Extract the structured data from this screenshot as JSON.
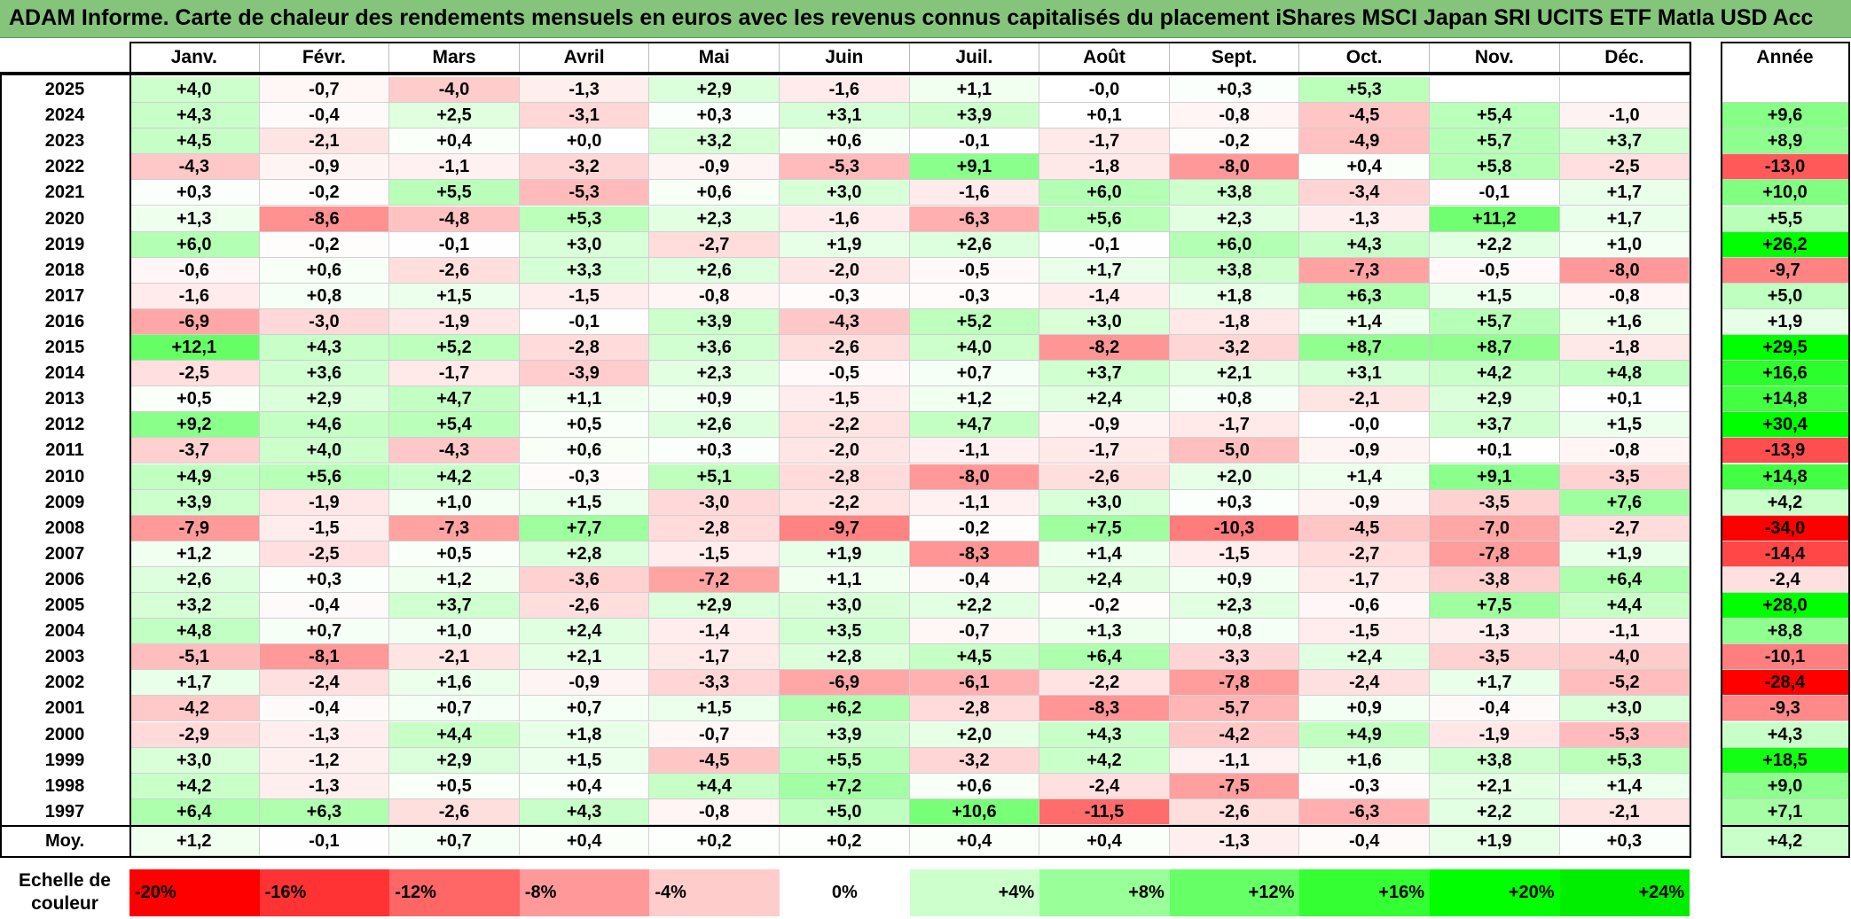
{
  "title": "ADAM Informe. Carte de chaleur des rendements mensuels en euros avec les revenus connus capitalisés du placement iShares MSCI Japan SRI UCITS ETF Matla USD Acc",
  "chart_data": {
    "type": "heatmap",
    "title": "ADAM Informe. Carte de chaleur des rendements mensuels en euros avec les revenus connus capitalisés du placement iShares MSCI Japan SRI UCITS ETF Matla USD Acc",
    "columns": [
      "Janv.",
      "Févr.",
      "Mars",
      "Avril",
      "Mai",
      "Juin",
      "Juil.",
      "Août",
      "Sept.",
      "Oct.",
      "Nov.",
      "Déc."
    ],
    "year_header": "Année",
    "rows": [
      {
        "year": "2025",
        "values": [
          "+4,0",
          "-0,7",
          "-4,0",
          "-1,3",
          "+2,9",
          "-1,6",
          "+1,1",
          "-0,0",
          "+0,3",
          "+5,3",
          "",
          ""
        ],
        "annual": ""
      },
      {
        "year": "2024",
        "values": [
          "+4,3",
          "-0,4",
          "+2,5",
          "-3,1",
          "+0,3",
          "+3,1",
          "+3,9",
          "+0,1",
          "-0,8",
          "-4,5",
          "+5,4",
          "-1,0"
        ],
        "annual": "+9,6"
      },
      {
        "year": "2023",
        "values": [
          "+4,5",
          "-2,1",
          "+0,4",
          "+0,0",
          "+3,2",
          "+0,6",
          "-0,1",
          "-1,7",
          "-0,2",
          "-4,9",
          "+5,7",
          "+3,7"
        ],
        "annual": "+8,9"
      },
      {
        "year": "2022",
        "values": [
          "-4,3",
          "-0,9",
          "-1,1",
          "-3,2",
          "-0,9",
          "-5,3",
          "+9,1",
          "-1,8",
          "-8,0",
          "+0,4",
          "+5,8",
          "-2,5"
        ],
        "annual": "-13,0"
      },
      {
        "year": "2021",
        "values": [
          "+0,3",
          "-0,2",
          "+5,5",
          "-5,3",
          "+0,6",
          "+3,0",
          "-1,6",
          "+6,0",
          "+3,8",
          "-3,4",
          "-0,1",
          "+1,7"
        ],
        "annual": "+10,0"
      },
      {
        "year": "2020",
        "values": [
          "+1,3",
          "-8,6",
          "-4,8",
          "+5,3",
          "+2,3",
          "-1,6",
          "-6,3",
          "+5,6",
          "+2,3",
          "-1,3",
          "+11,2",
          "+1,7"
        ],
        "annual": "+5,5"
      },
      {
        "year": "2019",
        "values": [
          "+6,0",
          "-0,2",
          "-0,1",
          "+3,0",
          "-2,7",
          "+1,9",
          "+2,6",
          "-0,1",
          "+6,0",
          "+4,3",
          "+2,2",
          "+1,0"
        ],
        "annual": "+26,2"
      },
      {
        "year": "2018",
        "values": [
          "-0,6",
          "+0,6",
          "-2,6",
          "+3,3",
          "+2,6",
          "-2,0",
          "-0,5",
          "+1,7",
          "+3,8",
          "-7,3",
          "-0,5",
          "-8,0"
        ],
        "annual": "-9,7"
      },
      {
        "year": "2017",
        "values": [
          "-1,6",
          "+0,8",
          "+1,5",
          "-1,5",
          "-0,8",
          "-0,3",
          "-0,3",
          "-1,4",
          "+1,8",
          "+6,3",
          "+1,5",
          "-0,8"
        ],
        "annual": "+5,0"
      },
      {
        "year": "2016",
        "values": [
          "-6,9",
          "-3,0",
          "-1,9",
          "-0,1",
          "+3,9",
          "-4,3",
          "+5,2",
          "+3,0",
          "-1,8",
          "+1,4",
          "+5,7",
          "+1,6"
        ],
        "annual": "+1,9"
      },
      {
        "year": "2015",
        "values": [
          "+12,1",
          "+4,3",
          "+5,2",
          "-2,8",
          "+3,6",
          "-2,6",
          "+4,0",
          "-8,2",
          "-3,2",
          "+8,7",
          "+8,7",
          "-1,8"
        ],
        "annual": "+29,5"
      },
      {
        "year": "2014",
        "values": [
          "-2,5",
          "+3,6",
          "-1,7",
          "-3,9",
          "+2,3",
          "-0,5",
          "+0,7",
          "+3,7",
          "+2,1",
          "+3,1",
          "+4,2",
          "+4,8"
        ],
        "annual": "+16,6"
      },
      {
        "year": "2013",
        "values": [
          "+0,5",
          "+2,9",
          "+4,7",
          "+1,1",
          "+0,9",
          "-1,5",
          "+1,2",
          "+2,4",
          "+0,8",
          "-2,1",
          "+2,9",
          "+0,1"
        ],
        "annual": "+14,8"
      },
      {
        "year": "2012",
        "values": [
          "+9,2",
          "+4,6",
          "+5,4",
          "+0,5",
          "+2,6",
          "-2,2",
          "+4,7",
          "-0,9",
          "-1,7",
          "-0,0",
          "+3,7",
          "+1,5"
        ],
        "annual": "+30,4"
      },
      {
        "year": "2011",
        "values": [
          "-3,7",
          "+4,0",
          "-4,3",
          "+0,6",
          "+0,3",
          "-2,0",
          "-1,1",
          "-1,7",
          "-5,0",
          "-0,9",
          "+0,1",
          "-0,8"
        ],
        "annual": "-13,9"
      },
      {
        "year": "2010",
        "values": [
          "+4,9",
          "+5,6",
          "+4,2",
          "-0,3",
          "+5,1",
          "-2,8",
          "-8,0",
          "-2,6",
          "+2,0",
          "+1,4",
          "+9,1",
          "-3,5"
        ],
        "annual": "+14,8"
      },
      {
        "year": "2009",
        "values": [
          "+3,9",
          "-1,9",
          "+1,0",
          "+1,5",
          "-3,0",
          "-2,2",
          "-1,1",
          "+3,0",
          "+0,3",
          "-0,9",
          "-3,5",
          "+7,6"
        ],
        "annual": "+4,2"
      },
      {
        "year": "2008",
        "values": [
          "-7,9",
          "-1,5",
          "-7,3",
          "+7,7",
          "-2,8",
          "-9,7",
          "-0,2",
          "+7,5",
          "-10,3",
          "-4,5",
          "-7,0",
          "-2,7"
        ],
        "annual": "-34,0"
      },
      {
        "year": "2007",
        "values": [
          "+1,2",
          "-2,5",
          "+0,5",
          "+2,8",
          "-1,5",
          "+1,9",
          "-8,3",
          "+1,4",
          "-1,5",
          "-2,7",
          "-7,8",
          "+1,9"
        ],
        "annual": "-14,4"
      },
      {
        "year": "2006",
        "values": [
          "+2,6",
          "+0,3",
          "+1,2",
          "-3,6",
          "-7,2",
          "+1,1",
          "-0,4",
          "+2,4",
          "+0,9",
          "-1,7",
          "-3,8",
          "+6,4"
        ],
        "annual": "-2,4"
      },
      {
        "year": "2005",
        "values": [
          "+3,2",
          "-0,4",
          "+3,7",
          "-2,6",
          "+2,9",
          "+3,0",
          "+2,2",
          "-0,2",
          "+2,3",
          "-0,6",
          "+7,5",
          "+4,4"
        ],
        "annual": "+28,0"
      },
      {
        "year": "2004",
        "values": [
          "+4,8",
          "+0,7",
          "+1,0",
          "+2,4",
          "-1,4",
          "+3,5",
          "-0,7",
          "+1,3",
          "+0,8",
          "-1,5",
          "-1,3",
          "-1,1"
        ],
        "annual": "+8,8"
      },
      {
        "year": "2003",
        "values": [
          "-5,1",
          "-8,1",
          "-2,1",
          "+2,1",
          "-1,7",
          "+2,8",
          "+4,5",
          "+6,4",
          "-3,3",
          "+2,4",
          "-3,5",
          "-4,0"
        ],
        "annual": "-10,1"
      },
      {
        "year": "2002",
        "values": [
          "+1,7",
          "-2,4",
          "+1,6",
          "-0,9",
          "-3,3",
          "-6,9",
          "-6,1",
          "-2,2",
          "-7,8",
          "-2,4",
          "+1,7",
          "-5,2"
        ],
        "annual": "-28,4"
      },
      {
        "year": "2001",
        "values": [
          "-4,2",
          "-0,4",
          "+0,7",
          "+0,7",
          "+1,5",
          "+6,2",
          "-2,8",
          "-8,3",
          "-5,7",
          "+0,9",
          "-0,4",
          "+3,0"
        ],
        "annual": "-9,3"
      },
      {
        "year": "2000",
        "values": [
          "-2,9",
          "-1,3",
          "+4,4",
          "+1,8",
          "-0,7",
          "+3,9",
          "+2,0",
          "+4,3",
          "-4,2",
          "+4,9",
          "-1,9",
          "-5,3"
        ],
        "annual": "+4,3"
      },
      {
        "year": "1999",
        "values": [
          "+3,0",
          "-1,2",
          "+2,9",
          "+1,5",
          "-4,5",
          "+5,5",
          "-3,2",
          "+4,2",
          "-1,1",
          "+1,6",
          "+3,8",
          "+5,3"
        ],
        "annual": "+18,5"
      },
      {
        "year": "1998",
        "values": [
          "+4,2",
          "-1,3",
          "+0,5",
          "+0,4",
          "+4,4",
          "+7,2",
          "+0,6",
          "-2,4",
          "-7,5",
          "-0,3",
          "+2,1",
          "+1,4"
        ],
        "annual": "+9,0"
      },
      {
        "year": "1997",
        "values": [
          "+6,4",
          "+6,3",
          "-2,6",
          "+4,3",
          "-0,8",
          "+5,0",
          "+10,6",
          "-11,5",
          "-2,6",
          "-6,3",
          "+2,2",
          "-2,1"
        ],
        "annual": "+7,1"
      }
    ],
    "average": {
      "label": "Moy.",
      "values": [
        "+1,2",
        "-0,1",
        "+0,7",
        "+0,4",
        "+0,2",
        "+0,2",
        "+0,4",
        "+0,4",
        "-1,3",
        "-0,4",
        "+1,9",
        "+0,3"
      ],
      "annual": "+4,2"
    },
    "color_scale": {
      "label": "Echelle de couleur",
      "stops": [
        {
          "label": "-20%",
          "value": -20,
          "color": "#ff0000"
        },
        {
          "label": "-16%",
          "value": -16,
          "color": "#ff3333"
        },
        {
          "label": "-12%",
          "value": -12,
          "color": "#ff6666"
        },
        {
          "label": "-8%",
          "value": -8,
          "color": "#ff9999"
        },
        {
          "label": "-4%",
          "value": -4,
          "color": "#ffcccc"
        },
        {
          "label": "0%",
          "value": 0,
          "color": "#ffffff"
        },
        {
          "label": "+4%",
          "value": 4,
          "color": "#ccffcc"
        },
        {
          "label": "+8%",
          "value": 8,
          "color": "#99ff99"
        },
        {
          "label": "+12%",
          "value": 12,
          "color": "#66ff66"
        },
        {
          "label": "+16%",
          "value": 16,
          "color": "#33ff33"
        },
        {
          "label": "+20%",
          "value": 20,
          "color": "#00ff00"
        },
        {
          "label": "+24%",
          "value": 24,
          "color": "#00ee00"
        }
      ]
    }
  }
}
